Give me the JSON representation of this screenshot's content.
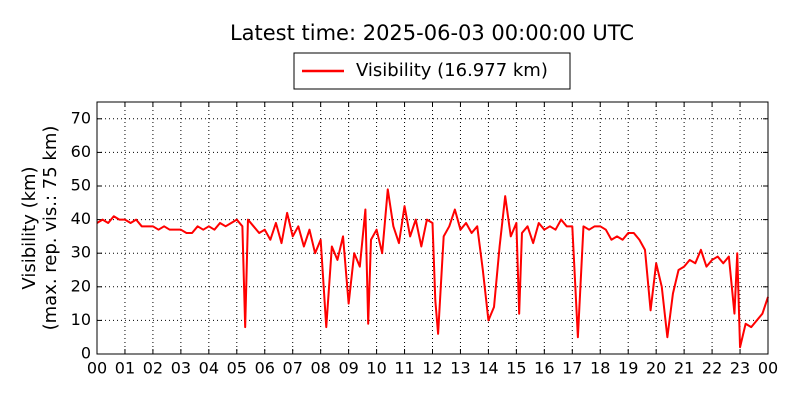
{
  "chart_data": {
    "type": "line",
    "title": "Latest time: 2025-06-03 00:00:00 UTC",
    "ylabel": [
      "Visibility (km)",
      "(max. rep. vis.: 75 km)"
    ],
    "x": [
      0,
      0.2,
      0.4,
      0.6,
      0.8,
      1,
      1.2,
      1.4,
      1.6,
      1.8,
      2,
      2.2,
      2.4,
      2.6,
      2.8,
      3,
      3.2,
      3.4,
      3.6,
      3.8,
      4,
      4.2,
      4.4,
      4.6,
      4.8,
      5,
      5.2,
      5.3,
      5.4,
      5.6,
      5.8,
      6,
      6.2,
      6.4,
      6.6,
      6.8,
      7,
      7.2,
      7.4,
      7.6,
      7.8,
      8,
      8.2,
      8.4,
      8.6,
      8.8,
      9,
      9.2,
      9.4,
      9.6,
      9.7,
      9.8,
      10,
      10.2,
      10.4,
      10.6,
      10.8,
      11,
      11.2,
      11.4,
      11.6,
      11.8,
      12,
      12.1,
      12.2,
      12.4,
      12.6,
      12.8,
      13,
      13.2,
      13.4,
      13.6,
      13.8,
      14,
      14.2,
      14.4,
      14.6,
      14.8,
      15,
      15.1,
      15.2,
      15.4,
      15.6,
      15.8,
      16,
      16.2,
      16.4,
      16.6,
      16.8,
      17,
      17.2,
      17.4,
      17.6,
      17.8,
      18,
      18.2,
      18.4,
      18.6,
      18.8,
      19,
      19.2,
      19.4,
      19.6,
      19.8,
      20,
      20.2,
      20.4,
      20.6,
      20.8,
      21,
      21.2,
      21.4,
      21.6,
      21.8,
      22,
      22.2,
      22.4,
      22.6,
      22.8,
      22.9,
      23,
      23.2,
      23.4,
      23.6,
      23.8,
      24
    ],
    "series": [
      {
        "name": "Visibility (16.977 km)",
        "color": "#ff0000",
        "values": [
          39,
          40,
          39,
          41,
          40,
          40,
          39,
          40,
          38,
          38,
          38,
          37,
          38,
          37,
          37,
          37,
          36,
          36,
          38,
          37,
          38,
          37,
          39,
          38,
          39,
          40,
          38,
          8,
          40,
          38,
          36,
          37,
          34,
          39,
          33,
          42,
          35,
          38,
          32,
          37,
          30,
          34,
          8,
          32,
          28,
          35,
          15,
          30,
          26,
          43,
          9,
          34,
          37,
          30,
          49,
          38,
          33,
          44,
          35,
          40,
          32,
          40,
          39,
          16,
          6,
          35,
          38,
          43,
          37,
          39,
          36,
          38,
          25,
          10,
          14,
          32,
          47,
          35,
          39,
          12,
          36,
          38,
          33,
          39,
          37,
          38,
          37,
          40,
          38,
          38,
          5,
          38,
          37,
          38,
          38,
          37,
          34,
          35,
          34,
          36,
          36,
          34,
          31,
          13,
          27,
          20,
          5,
          18,
          25,
          26,
          28,
          27,
          31,
          26,
          28,
          29,
          27,
          29,
          12,
          30,
          2,
          9,
          8,
          10,
          12,
          17
        ]
      }
    ],
    "xlim": [
      0,
      24
    ],
    "xticks": [
      {
        "value": 0,
        "label": "00"
      },
      {
        "value": 1,
        "label": "01"
      },
      {
        "value": 2,
        "label": "02"
      },
      {
        "value": 3,
        "label": "03"
      },
      {
        "value": 4,
        "label": "04"
      },
      {
        "value": 5,
        "label": "05"
      },
      {
        "value": 6,
        "label": "06"
      },
      {
        "value": 7,
        "label": "07"
      },
      {
        "value": 8,
        "label": "08"
      },
      {
        "value": 9,
        "label": "09"
      },
      10,
      11,
      12,
      13,
      14,
      15,
      16,
      17,
      18,
      19,
      20,
      21,
      22,
      23,
      {
        "value": 24,
        "label": "00"
      }
    ],
    "ylim": [
      0,
      75
    ],
    "yticks": [
      0,
      10,
      20,
      30,
      40,
      50,
      60,
      70
    ],
    "grid": true
  }
}
